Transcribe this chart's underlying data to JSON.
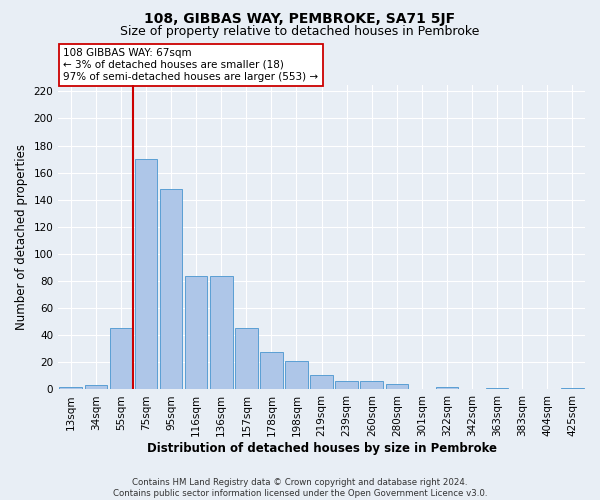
{
  "title": "108, GIBBAS WAY, PEMBROKE, SA71 5JF",
  "subtitle": "Size of property relative to detached houses in Pembroke",
  "xlabel": "Distribution of detached houses by size in Pembroke",
  "ylabel": "Number of detached properties",
  "footnote": "Contains HM Land Registry data © Crown copyright and database right 2024.\nContains public sector information licensed under the Open Government Licence v3.0.",
  "categories": [
    "13sqm",
    "34sqm",
    "55sqm",
    "75sqm",
    "95sqm",
    "116sqm",
    "136sqm",
    "157sqm",
    "178sqm",
    "198sqm",
    "219sqm",
    "239sqm",
    "260sqm",
    "280sqm",
    "301sqm",
    "322sqm",
    "342sqm",
    "363sqm",
    "383sqm",
    "404sqm",
    "425sqm"
  ],
  "values": [
    2,
    3,
    45,
    170,
    148,
    84,
    84,
    45,
    28,
    21,
    11,
    6,
    6,
    4,
    0,
    2,
    0,
    1,
    0,
    0,
    1
  ],
  "bar_color": "#aec6e8",
  "bar_edge_color": "#5a9fd4",
  "vline_x": 2.5,
  "vline_color": "#cc0000",
  "annotation_text": "108 GIBBAS WAY: 67sqm\n← 3% of detached houses are smaller (18)\n97% of semi-detached houses are larger (553) →",
  "annotation_box_color": "#ffffff",
  "annotation_box_edge": "#cc0000",
  "ylim": [
    0,
    225
  ],
  "yticks": [
    0,
    20,
    40,
    60,
    80,
    100,
    120,
    140,
    160,
    180,
    200,
    220
  ],
  "background_color": "#e8eef5",
  "grid_color": "#ffffff",
  "title_fontsize": 10,
  "subtitle_fontsize": 9,
  "axis_label_fontsize": 8.5,
  "tick_fontsize": 7.5,
  "footnote_fontsize": 6.2
}
